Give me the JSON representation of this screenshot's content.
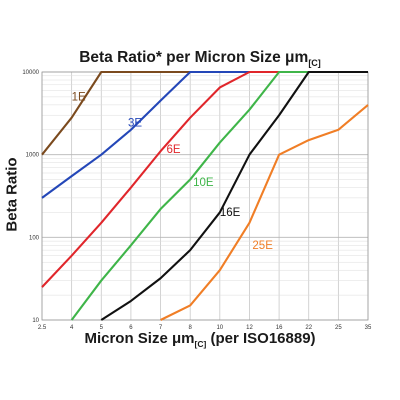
{
  "chart_data": {
    "type": "line",
    "title_main": "Beta Ratio* per Micron Size μm",
    "title_sub": "[C]",
    "xlabel_main": "Micron Size μm",
    "xlabel_sub": "[C]",
    "xlabel_tail": " (per ISO16889)",
    "ylabel": "Beta Ratio",
    "x_scale": "categorical",
    "y_scale": "log",
    "ylim": [
      10,
      10000
    ],
    "categories": [
      "2.5",
      "4",
      "5",
      "6",
      "7",
      "8",
      "10",
      "12",
      "16",
      "22",
      "25",
      "35"
    ],
    "y_ticks": [
      "10",
      "100",
      "1000",
      "10000"
    ],
    "grid": true,
    "series": [
      {
        "name": "1E",
        "color": "#7b4a1e",
        "values": [
          1000,
          2800,
          10000,
          10000,
          10000,
          10000,
          10000,
          10000,
          10000,
          10000,
          10000,
          10000
        ]
      },
      {
        "name": "3E",
        "color": "#2447b8",
        "values": [
          300,
          550,
          1000,
          2000,
          4500,
          10000,
          10000,
          10000,
          10000,
          10000,
          10000,
          10000
        ]
      },
      {
        "name": "6E",
        "color": "#e0262b",
        "values": [
          25,
          60,
          150,
          400,
          1100,
          2800,
          6500,
          10000,
          10000,
          10000,
          10000,
          10000
        ]
      },
      {
        "name": "10E",
        "color": "#3fb549",
        "values": [
          null,
          10,
          30,
          80,
          220,
          500,
          1400,
          3500,
          10000,
          10000,
          10000,
          10000
        ]
      },
      {
        "name": "16E",
        "color": "#111111",
        "values": [
          null,
          null,
          10,
          17,
          32,
          70,
          200,
          1000,
          3000,
          10000,
          10000,
          10000
        ]
      },
      {
        "name": "25E",
        "color": "#f07e26",
        "values": [
          null,
          null,
          null,
          null,
          10,
          15,
          40,
          150,
          1000,
          1500,
          2000,
          4000
        ]
      }
    ],
    "series_label_pos": [
      {
        "xi": 1.0,
        "y": 4500
      },
      {
        "xi": 2.9,
        "y": 2200
      },
      {
        "xi": 4.2,
        "y": 1050
      },
      {
        "xi": 5.1,
        "y": 420
      },
      {
        "xi": 6.0,
        "y": 180
      },
      {
        "xi": 7.1,
        "y": 72
      }
    ]
  }
}
